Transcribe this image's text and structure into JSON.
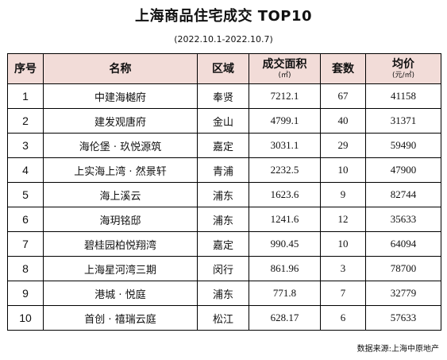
{
  "title": "上海商品住宅成交 TOP10",
  "subtitle": "(2022.10.1-2022.10.7)",
  "headers": {
    "rank": "序号",
    "name": "名称",
    "district": "区域",
    "area": "成交面积",
    "area_unit": "(㎡)",
    "units": "套数",
    "price": "均价",
    "price_unit": "(元/㎡)"
  },
  "rows": [
    {
      "rank": "1",
      "name": "中建海樾府",
      "district": "奉贤",
      "area": "7212.1",
      "units": "67",
      "price": "41158"
    },
    {
      "rank": "2",
      "name": "建发观唐府",
      "district": "金山",
      "area": "4799.1",
      "units": "40",
      "price": "31371"
    },
    {
      "rank": "3",
      "name": "海伦堡 · 玖悦源筑",
      "district": "嘉定",
      "area": "3031.1",
      "units": "29",
      "price": "59490"
    },
    {
      "rank": "4",
      "name": "上实海上湾 · 然景轩",
      "district": "青浦",
      "area": "2232.5",
      "units": "10",
      "price": "47900"
    },
    {
      "rank": "5",
      "name": "海上溪云",
      "district": "浦东",
      "area": "1623.6",
      "units": "9",
      "price": "82744"
    },
    {
      "rank": "6",
      "name": "海玥铭邸",
      "district": "浦东",
      "area": "1241.6",
      "units": "12",
      "price": "35633"
    },
    {
      "rank": "7",
      "name": "碧桂园柏悦翔湾",
      "district": "嘉定",
      "area": "990.45",
      "units": "10",
      "price": "64094"
    },
    {
      "rank": "8",
      "name": "上海星河湾三期",
      "district": "闵行",
      "area": "861.96",
      "units": "3",
      "price": "78700"
    },
    {
      "rank": "9",
      "name": "港城 · 悦庭",
      "district": "浦东",
      "area": "771.8",
      "units": "7",
      "price": "32779"
    },
    {
      "rank": "10",
      "name": "首创 · 禧瑞云庭",
      "district": "松江",
      "area": "628.17",
      "units": "6",
      "price": "57633"
    }
  ],
  "source": "数据来源:上海中原地产",
  "colors": {
    "header_bg": "#f2dcd8",
    "border": "#000000"
  }
}
